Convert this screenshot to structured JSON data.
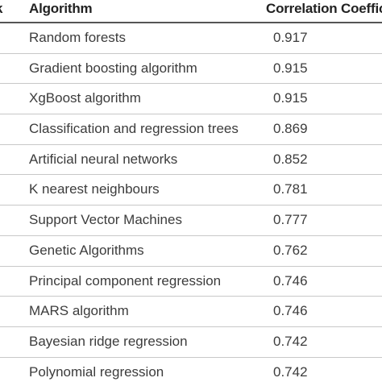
{
  "table": {
    "headers": {
      "rank": "k",
      "algorithm": "Algorithm",
      "correlation": "Correlation Coeffic"
    },
    "rows": [
      {
        "algorithm": "Random forests",
        "value": "0.917"
      },
      {
        "algorithm": "Gradient boosting algorithm",
        "value": "0.915"
      },
      {
        "algorithm": "XgBoost algorithm",
        "value": "0.915"
      },
      {
        "algorithm": "Classification and regression trees",
        "value": "0.869"
      },
      {
        "algorithm": "Artificial neural networks",
        "value": "0.852"
      },
      {
        "algorithm": "K nearest neighbours",
        "value": "0.781"
      },
      {
        "algorithm": "Support Vector Machines",
        "value": "0.777"
      },
      {
        "algorithm": "Genetic Algorithms",
        "value": "0.762"
      },
      {
        "algorithm": "Principal component regression",
        "value": "0.746"
      },
      {
        "algorithm": "MARS algorithm",
        "value": "0.746"
      },
      {
        "algorithm": "Bayesian ridge regression",
        "value": "0.742"
      },
      {
        "algorithm": "Polynomial regression",
        "value": "0.742"
      }
    ]
  }
}
